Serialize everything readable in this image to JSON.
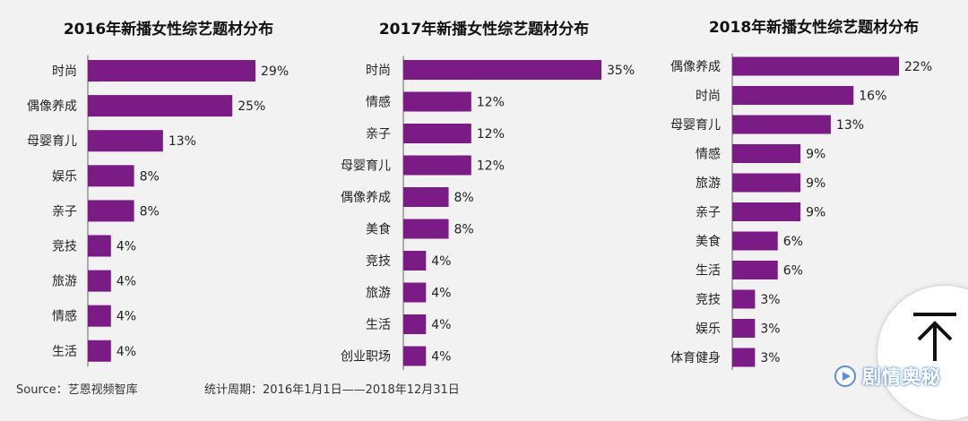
{
  "chart_data": [
    {
      "type": "bar",
      "orientation": "horizontal",
      "title": "2016年新播女性综艺题材分布",
      "categories": [
        "时尚",
        "偶像养成",
        "母婴育儿",
        "娱乐",
        "亲子",
        "竞技",
        "旅游",
        "情感",
        "生活"
      ],
      "values": [
        29,
        25,
        13,
        8,
        8,
        4,
        4,
        4,
        4
      ],
      "value_labels": [
        "29%",
        "25%",
        "13%",
        "8%",
        "8%",
        "4%",
        "4%",
        "4%",
        "4%"
      ],
      "xlim": [
        0,
        35
      ],
      "color": "#7a1b86"
    },
    {
      "type": "bar",
      "orientation": "horizontal",
      "title": "2017年新播女性综艺题材分布",
      "categories": [
        "时尚",
        "情感",
        "亲子",
        "母婴育儿",
        "偶像养成",
        "美食",
        "竞技",
        "旅游",
        "生活",
        "创业职场"
      ],
      "values": [
        35,
        12,
        12,
        12,
        8,
        8,
        4,
        4,
        4,
        4
      ],
      "value_labels": [
        "35%",
        "12%",
        "12%",
        "12%",
        "8%",
        "8%",
        "4%",
        "4%",
        "4%",
        "4%"
      ],
      "xlim": [
        0,
        35
      ],
      "color": "#7a1b86"
    },
    {
      "type": "bar",
      "orientation": "horizontal",
      "title": "2018年新播女性综艺题材分布",
      "categories": [
        "偶像养成",
        "时尚",
        "母婴育儿",
        "情感",
        "旅游",
        "亲子",
        "美食",
        "生活",
        "竞技",
        "娱乐",
        "体育健身"
      ],
      "values": [
        22,
        16,
        13,
        9,
        9,
        9,
        6,
        6,
        3,
        3,
        3
      ],
      "value_labels": [
        "22%",
        "16%",
        "13%",
        "9%",
        "9%",
        "9%",
        "6%",
        "6%",
        "3%",
        "3%",
        "3%"
      ],
      "xlim": [
        0,
        22
      ],
      "color": "#7a1b86"
    }
  ],
  "footer": {
    "source": "Source：艺恩视频智库",
    "period": "统计周期：2016年1月1日——2018年12月31日"
  },
  "watermark": {
    "text": "剧情奥秘"
  },
  "icons": {
    "scroll_top": "arrow-up-to-top-icon",
    "watermark_logo": "brand-logo-icon"
  }
}
